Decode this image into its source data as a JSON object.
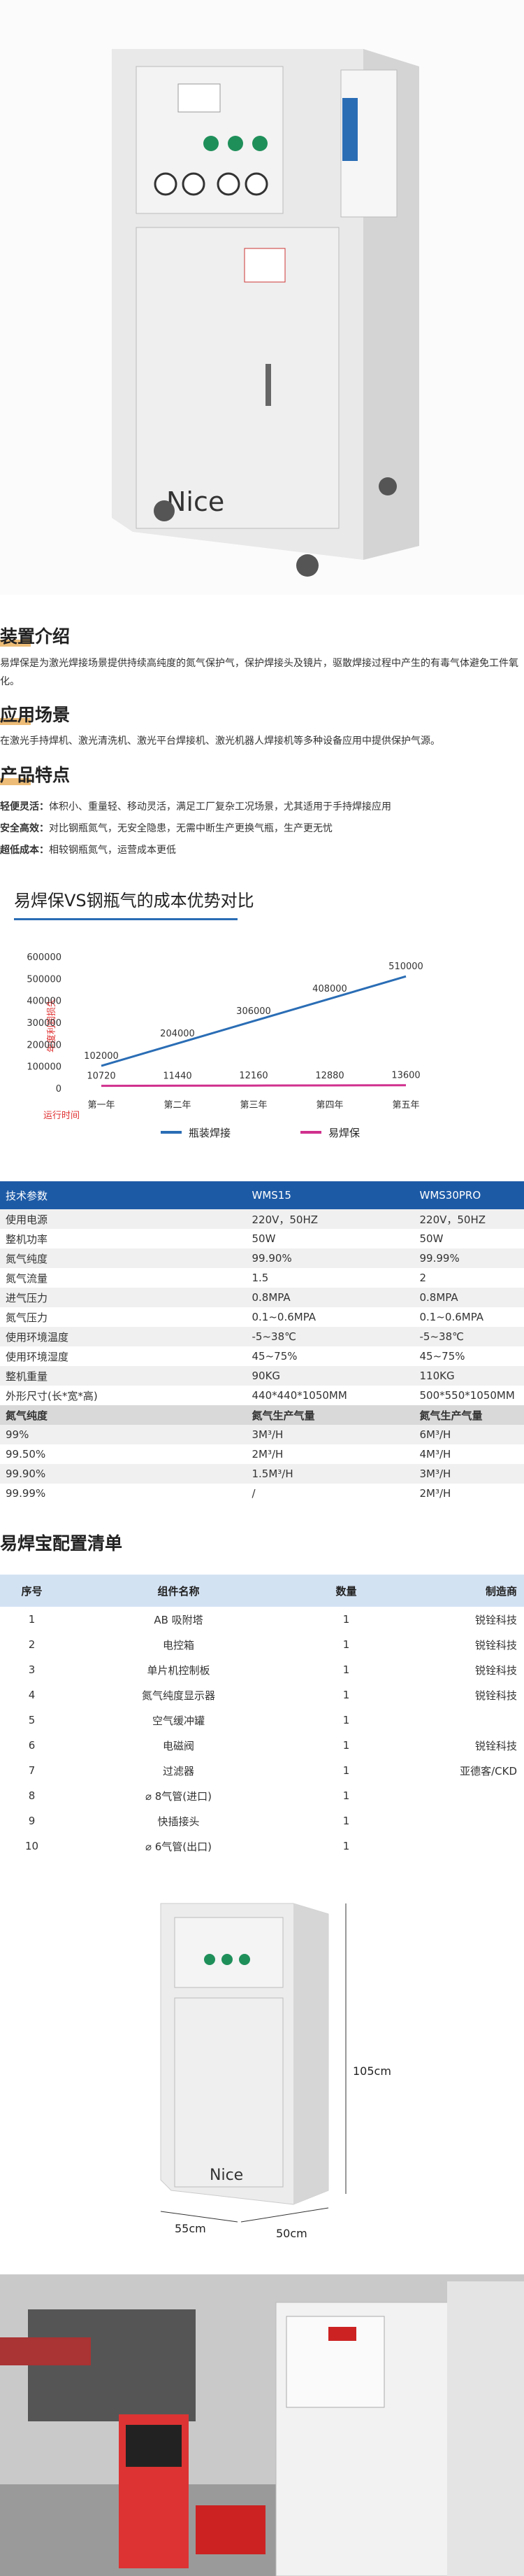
{
  "intro": {
    "title": "装置介绍",
    "text": "易焊保是为激光焊接场景提供持续高纯度的氮气保护气，保护焊接头及镜片，驱散焊接过程中产生的有毒气体避免工件氧化。"
  },
  "application": {
    "title": "应用场景",
    "text": "在激光手持焊机、激光清洗机、激光平台焊接机、激光机器人焊接机等多种设备应用中提供保护气源。"
  },
  "features": {
    "title": "产品特点",
    "items": [
      {
        "label": "轻便灵活：",
        "text": "体积小、重量轻、移动灵活，满足工厂复杂工况场景，尤其适用于手持焊接应用"
      },
      {
        "label": "安全高效：",
        "text": "对比钢瓶氮气，无安全隐患，无需中断生产更换气瓶，生产更无忧"
      },
      {
        "label": "超低成本：",
        "text": "相较钢瓶氮气，运营成本更低"
      }
    ]
  },
  "chart_data": {
    "type": "line",
    "title": "易焊保VS钢瓶气的成本优势对比",
    "y_label": "年度利润损失",
    "x_label": "运行时间",
    "categories": [
      "第一年",
      "第二年",
      "第三年",
      "第四年",
      "第五年"
    ],
    "series": [
      {
        "name": "瓶装焊接",
        "color": "#2a6db5",
        "values": [
          102000,
          204000,
          306000,
          408000,
          510000
        ]
      },
      {
        "name": "易焊保",
        "color": "#d0308e",
        "values": [
          10720,
          11440,
          12160,
          12880,
          13600
        ]
      }
    ],
    "ylim": [
      0,
      600000
    ],
    "yticks": [
      0,
      100000,
      200000,
      300000,
      400000,
      500000,
      600000
    ],
    "grid": false,
    "legend": "bottom"
  },
  "specs": {
    "header": [
      "技术参数",
      "WMS15",
      "WMS30PRO"
    ],
    "rows": [
      [
        "使用电源",
        "220V，50HZ",
        "220V，50HZ"
      ],
      [
        "整机功率",
        "50W",
        "50W"
      ],
      [
        "氮气纯度",
        "99.90%",
        "99.99%"
      ],
      [
        "氮气流量",
        "1.5",
        "2"
      ],
      [
        "进气压力",
        "0.8MPA",
        "0.8MPA"
      ],
      [
        "氮气压力",
        "0.1~0.6MPA",
        "0.1~0.6MPA"
      ],
      [
        "使用环境温度",
        "-5~38℃",
        "-5~38℃"
      ],
      [
        "使用环境湿度",
        "45~75%",
        "45~75%"
      ],
      [
        "整机重量",
        "90KG",
        "110KG"
      ],
      [
        "外形尺寸(长*宽*高)",
        "440*440*1050MM",
        "500*550*1050MM"
      ]
    ],
    "subheader": [
      "氮气纯度",
      "氮气生产气量",
      "氮气生产气量"
    ],
    "flow_rows": [
      [
        "99%",
        "3M³/H",
        "6M³/H"
      ],
      [
        "99.50%",
        "2M³/H",
        "4M³/H"
      ],
      [
        "99.90%",
        "1.5M³/H",
        "3M³/H"
      ],
      [
        "99.99%",
        "/",
        "2M³/H"
      ]
    ]
  },
  "config": {
    "title": "易焊宝配置清单",
    "header": [
      "序号",
      "组件名称",
      "数量",
      "制造商"
    ],
    "rows": [
      [
        "1",
        "AB 吸附塔",
        "1",
        "锐铨科技"
      ],
      [
        "2",
        "电控箱",
        "1",
        "锐铨科技"
      ],
      [
        "3",
        "单片机控制板",
        "1",
        "锐铨科技"
      ],
      [
        "4",
        "氮气纯度显示器",
        "1",
        "锐铨科技"
      ],
      [
        "5",
        "空气缓冲罐",
        "1",
        ""
      ],
      [
        "6",
        "电磁阀",
        "1",
        "锐铨科技"
      ],
      [
        "7",
        "过滤器",
        "1",
        "亚德客/CKD"
      ],
      [
        "8",
        "⌀ 8气管(进口)",
        "1",
        ""
      ],
      [
        "9",
        "快插接头",
        "1",
        ""
      ],
      [
        "10",
        "⌀ 6气管(出口)",
        "1",
        ""
      ]
    ]
  },
  "dimensions": {
    "height": "105cm",
    "depth": "55cm",
    "width": "50cm"
  },
  "brand": "Nice"
}
